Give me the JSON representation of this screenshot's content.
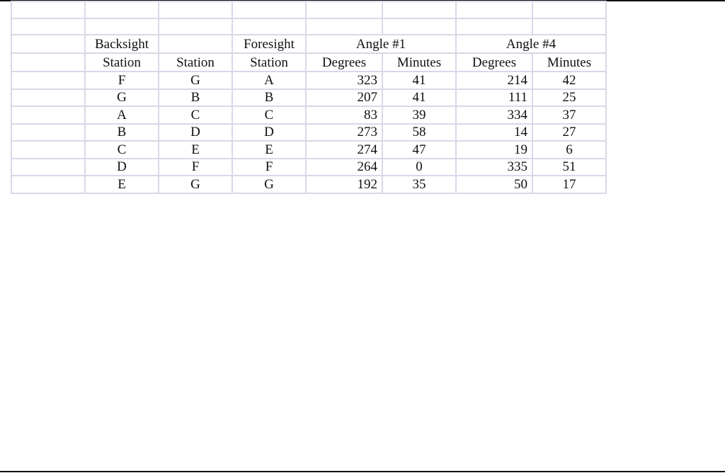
{
  "header": {
    "row1": [
      "",
      "Backsight",
      "",
      "Foresight",
      "Angle #1",
      "Angle #4"
    ],
    "row2": [
      "",
      "Station",
      "Station",
      "Station",
      "Degrees",
      "Minutes",
      "Degrees",
      "Minutes"
    ]
  },
  "rows": [
    {
      "backsight": "F",
      "station": "G",
      "foresight": "A",
      "a1_deg": "323",
      "a1_min": "41",
      "a4_deg": "214",
      "a4_min": "42"
    },
    {
      "backsight": "G",
      "station": "B",
      "foresight": "B",
      "a1_deg": "207",
      "a1_min": "41",
      "a4_deg": "111",
      "a4_min": "25"
    },
    {
      "backsight": "A",
      "station": "C",
      "foresight": "C",
      "a1_deg": "83",
      "a1_min": "39",
      "a4_deg": "334",
      "a4_min": "37"
    },
    {
      "backsight": "B",
      "station": "D",
      "foresight": "D",
      "a1_deg": "273",
      "a1_min": "58",
      "a4_deg": "14",
      "a4_min": "27"
    },
    {
      "backsight": "C",
      "station": "E",
      "foresight": "E",
      "a1_deg": "274",
      "a1_min": "47",
      "a4_deg": "19",
      "a4_min": "6"
    },
    {
      "backsight": "D",
      "station": "F",
      "foresight": "F",
      "a1_deg": "264",
      "a1_min": "0",
      "a4_deg": "335",
      "a4_min": "51"
    },
    {
      "backsight": "E",
      "station": "G",
      "foresight": "G",
      "a1_deg": "192",
      "a1_min": "35",
      "a4_deg": "50",
      "a4_min": "17"
    }
  ]
}
